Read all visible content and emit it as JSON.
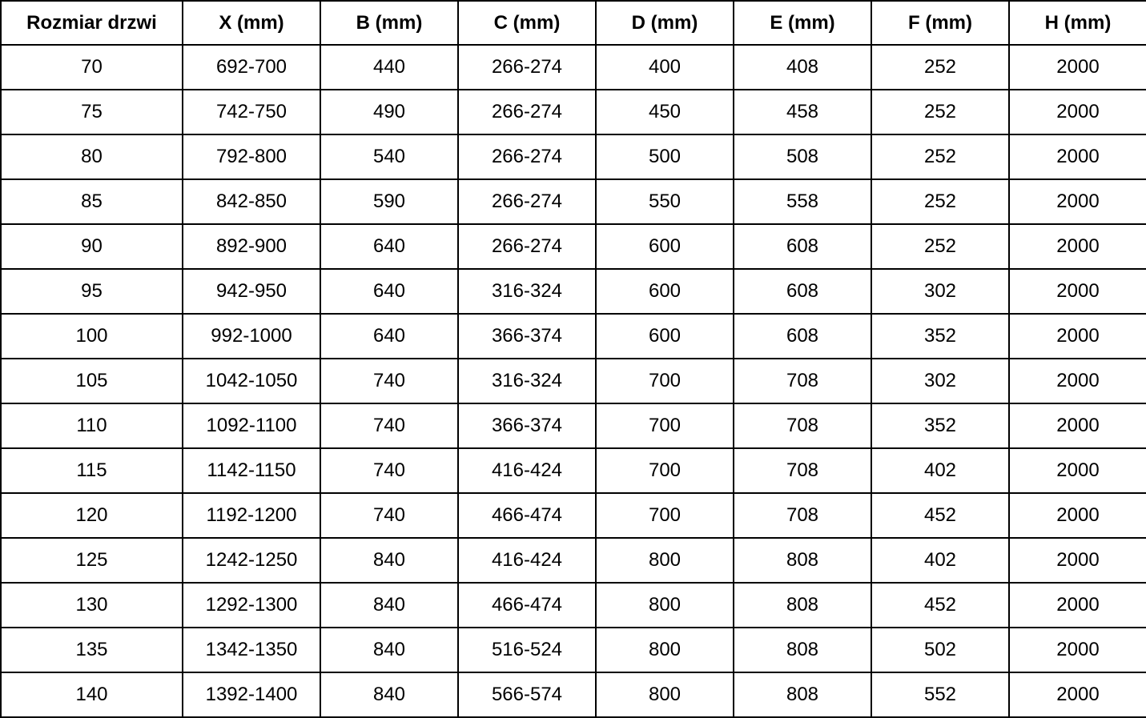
{
  "table": {
    "columns": [
      "Rozmiar drzwi",
      "X (mm)",
      "B (mm)",
      "C (mm)",
      "D (mm)",
      "E (mm)",
      "F (mm)",
      "H (mm)"
    ],
    "rows": [
      [
        "70",
        "692-700",
        "440",
        "266-274",
        "400",
        "408",
        "252",
        "2000"
      ],
      [
        "75",
        "742-750",
        "490",
        "266-274",
        "450",
        "458",
        "252",
        "2000"
      ],
      [
        "80",
        "792-800",
        "540",
        "266-274",
        "500",
        "508",
        "252",
        "2000"
      ],
      [
        "85",
        "842-850",
        "590",
        "266-274",
        "550",
        "558",
        "252",
        "2000"
      ],
      [
        "90",
        "892-900",
        "640",
        "266-274",
        "600",
        "608",
        "252",
        "2000"
      ],
      [
        "95",
        "942-950",
        "640",
        "316-324",
        "600",
        "608",
        "302",
        "2000"
      ],
      [
        "100",
        "992-1000",
        "640",
        "366-374",
        "600",
        "608",
        "352",
        "2000"
      ],
      [
        "105",
        "1042-1050",
        "740",
        "316-324",
        "700",
        "708",
        "302",
        "2000"
      ],
      [
        "110",
        "1092-1100",
        "740",
        "366-374",
        "700",
        "708",
        "352",
        "2000"
      ],
      [
        "115",
        "1142-1150",
        "740",
        "416-424",
        "700",
        "708",
        "402",
        "2000"
      ],
      [
        "120",
        "1192-1200",
        "740",
        "466-474",
        "700",
        "708",
        "452",
        "2000"
      ],
      [
        "125",
        "1242-1250",
        "840",
        "416-424",
        "800",
        "808",
        "402",
        "2000"
      ],
      [
        "130",
        "1292-1300",
        "840",
        "466-474",
        "800",
        "808",
        "452",
        "2000"
      ],
      [
        "135",
        "1342-1350",
        "840",
        "516-524",
        "800",
        "808",
        "502",
        "2000"
      ],
      [
        "140",
        "1392-1400",
        "840",
        "566-574",
        "800",
        "808",
        "552",
        "2000"
      ]
    ]
  },
  "colors": {
    "border": "#000000",
    "text": "#000000",
    "background": "#ffffff"
  }
}
